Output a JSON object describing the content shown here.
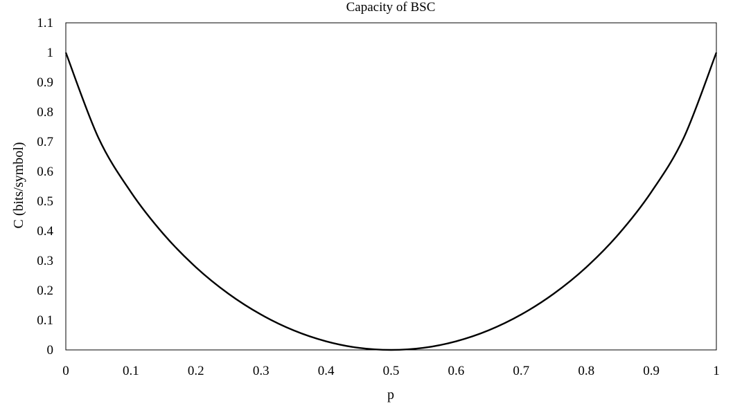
{
  "chart_data": {
    "type": "line",
    "title": "Capacity of BSC",
    "xlabel": "p",
    "ylabel": "C (bits/symbol)",
    "xlim": [
      0,
      1
    ],
    "ylim": [
      0,
      1.1
    ],
    "grid": false,
    "x_ticks": [
      "0",
      "0.1",
      "0.2",
      "0.3",
      "0.4",
      "0.5",
      "0.6",
      "0.7",
      "0.8",
      "0.9",
      "1"
    ],
    "y_ticks": [
      "0",
      "0.1",
      "0.2",
      "0.3",
      "0.4",
      "0.5",
      "0.6",
      "0.7",
      "0.8",
      "0.9",
      "1",
      "1.1"
    ],
    "series": [
      {
        "color": "#000000",
        "x": [
          0,
          0.05,
          0.1,
          0.15,
          0.2,
          0.25,
          0.3,
          0.35,
          0.4,
          0.45,
          0.5,
          0.55,
          0.6,
          0.65,
          0.7,
          0.75,
          0.8,
          0.85,
          0.9,
          0.95,
          1
        ],
        "y": [
          1,
          0.714,
          0.531,
          0.39,
          0.278,
          0.189,
          0.119,
          0.066,
          0.029,
          0.007,
          0,
          0.007,
          0.029,
          0.066,
          0.119,
          0.189,
          0.278,
          0.39,
          0.531,
          0.714,
          1
        ]
      }
    ]
  }
}
